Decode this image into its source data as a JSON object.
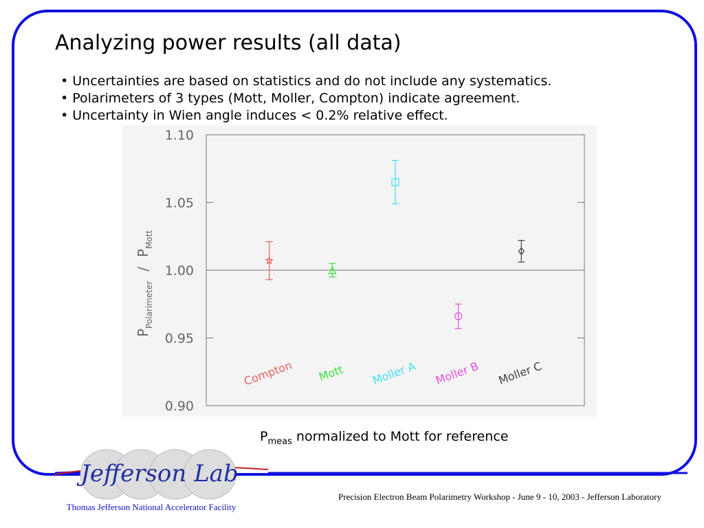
{
  "title": "Analyzing power results (all data)",
  "bullets": [
    "• Uncertainties are based on statistics and do not include any systematics.",
    "• Polarimeters of 3 types (Mott, Moller, Compton) indicate agreement.",
    "• Uncertainty in Wien angle induces < 0.2% relative effect."
  ],
  "chart_data": {
    "type": "errorbar",
    "categories": [
      "Compton",
      "Mott",
      "Moller  A",
      "Moller  B",
      "Moller  C"
    ],
    "values": [
      1.007,
      1.0,
      1.065,
      0.966,
      1.014
    ],
    "errors": [
      0.014,
      0.005,
      0.016,
      0.009,
      0.008
    ],
    "colors": [
      "#e86060",
      "#40e040",
      "#40e0f0",
      "#e050e0",
      "#404040"
    ],
    "markers": [
      "star",
      "triangle",
      "square",
      "circle",
      "diamond"
    ],
    "y_label": {
      "p1": "P",
      "sub1": "Polarimeter",
      "slash": "/",
      "p2": "P",
      "sub2": "Mott"
    },
    "ylim": [
      0.9,
      1.1
    ],
    "yticks": [
      {
        "value": 0.9,
        "label": "0.90"
      },
      {
        "value": 0.95,
        "label": "0.95"
      },
      {
        "value": 1.0,
        "label": "1.00"
      },
      {
        "value": 1.05,
        "label": "1.05"
      },
      {
        "value": 1.1,
        "label": "1.10"
      }
    ],
    "reference_line": 1
  },
  "caption": {
    "main": "P",
    "sub": "meas",
    "rest": " normalized to Mott for reference"
  },
  "footer": {
    "logo": "Jefferson Lab",
    "facility": "Thomas Jefferson National Accelerator Facility",
    "event": "Precision Electron Beam Polarimetry Workshop - June 9 - 10, 2003 - Jefferson Laboratory"
  }
}
